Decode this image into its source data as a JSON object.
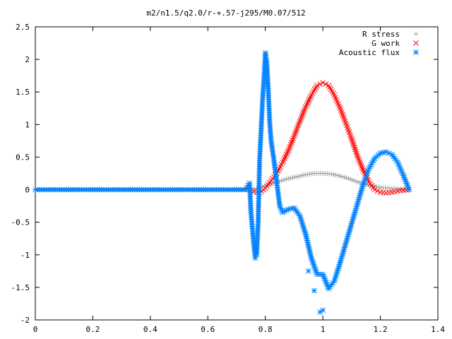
{
  "chart_data": {
    "type": "scatter",
    "title": "m2/n1.5/q2.0/r-+.57-j295/M0.07/512",
    "xlabel": "",
    "ylabel": "",
    "xlim": [
      0,
      1.4
    ],
    "ylim": [
      -2,
      2.5
    ],
    "x_ticks": [
      "0",
      "0.2",
      "0.4",
      "0.6",
      "0.8",
      "1",
      "1.2",
      "1.4"
    ],
    "y_ticks": [
      "2.5",
      "2",
      "1.5",
      "1",
      "0.5",
      "0",
      "-0.5",
      "-1",
      "-1.5",
      "-2"
    ],
    "grid": false,
    "legend_position": "top-right",
    "series": [
      {
        "name": "R stress",
        "marker": "+",
        "color": "#a0a0a0",
        "points": [
          [
            0.0,
            0
          ],
          [
            0.1,
            0
          ],
          [
            0.2,
            0
          ],
          [
            0.3,
            0
          ],
          [
            0.4,
            0
          ],
          [
            0.5,
            0
          ],
          [
            0.6,
            0
          ],
          [
            0.7,
            0
          ],
          [
            0.74,
            0
          ],
          [
            0.76,
            0.01
          ],
          [
            0.78,
            0.03
          ],
          [
            0.8,
            0.06
          ],
          [
            0.82,
            0.09
          ],
          [
            0.85,
            0.13
          ],
          [
            0.88,
            0.17
          ],
          [
            0.91,
            0.2
          ],
          [
            0.94,
            0.23
          ],
          [
            0.97,
            0.25
          ],
          [
            1.0,
            0.25
          ],
          [
            1.03,
            0.24
          ],
          [
            1.06,
            0.21
          ],
          [
            1.09,
            0.17
          ],
          [
            1.12,
            0.12
          ],
          [
            1.15,
            0.08
          ],
          [
            1.18,
            0.05
          ],
          [
            1.21,
            0.03
          ],
          [
            1.24,
            0.02
          ],
          [
            1.27,
            0.01
          ],
          [
            1.3,
            0.0
          ]
        ]
      },
      {
        "name": "G work",
        "marker": "x",
        "color": "#ff0000",
        "points": [
          [
            0.74,
            0.0
          ],
          [
            0.76,
            -0.03
          ],
          [
            0.78,
            -0.05
          ],
          [
            0.8,
            0.02
          ],
          [
            0.82,
            0.14
          ],
          [
            0.84,
            0.25
          ],
          [
            0.86,
            0.42
          ],
          [
            0.88,
            0.6
          ],
          [
            0.9,
            0.82
          ],
          [
            0.92,
            1.05
          ],
          [
            0.94,
            1.27
          ],
          [
            0.96,
            1.45
          ],
          [
            0.98,
            1.6
          ],
          [
            1.0,
            1.64
          ],
          [
            1.02,
            1.6
          ],
          [
            1.04,
            1.45
          ],
          [
            1.06,
            1.25
          ],
          [
            1.08,
            1.02
          ],
          [
            1.1,
            0.78
          ],
          [
            1.12,
            0.52
          ],
          [
            1.14,
            0.3
          ],
          [
            1.16,
            0.12
          ],
          [
            1.18,
            0.0
          ],
          [
            1.2,
            -0.04
          ],
          [
            1.22,
            -0.05
          ],
          [
            1.24,
            -0.04
          ],
          [
            1.26,
            -0.02
          ],
          [
            1.28,
            -0.01
          ],
          [
            1.3,
            0.0
          ]
        ]
      },
      {
        "name": "Acoustic flux",
        "marker": "*",
        "color": "#0080ff",
        "points": [
          [
            0.0,
            0
          ],
          [
            0.1,
            0
          ],
          [
            0.2,
            0
          ],
          [
            0.3,
            0
          ],
          [
            0.4,
            0
          ],
          [
            0.5,
            0
          ],
          [
            0.6,
            0
          ],
          [
            0.7,
            0
          ],
          [
            0.73,
            0
          ],
          [
            0.745,
            0.1
          ],
          [
            0.75,
            -0.35
          ],
          [
            0.755,
            -0.6
          ],
          [
            0.76,
            -0.85
          ],
          [
            0.765,
            -1.05
          ],
          [
            0.77,
            -1.0
          ],
          [
            0.775,
            -0.5
          ],
          [
            0.78,
            0.45
          ],
          [
            0.785,
            0.9
          ],
          [
            0.79,
            1.35
          ],
          [
            0.795,
            1.7
          ],
          [
            0.8,
            2.1
          ],
          [
            0.805,
            1.95
          ],
          [
            0.81,
            1.55
          ],
          [
            0.815,
            1.05
          ],
          [
            0.82,
            0.75
          ],
          [
            0.83,
            0.45
          ],
          [
            0.84,
            0.1
          ],
          [
            0.85,
            -0.25
          ],
          [
            0.86,
            -0.35
          ],
          [
            0.88,
            -0.3
          ],
          [
            0.9,
            -0.28
          ],
          [
            0.92,
            -0.4
          ],
          [
            0.94,
            -0.68
          ],
          [
            0.96,
            -1.05
          ],
          [
            0.98,
            -1.3
          ],
          [
            1.0,
            -1.3
          ],
          [
            1.02,
            -1.52
          ],
          [
            1.04,
            -1.4
          ],
          [
            1.06,
            -1.12
          ],
          [
            1.08,
            -0.82
          ],
          [
            1.1,
            -0.52
          ],
          [
            1.12,
            -0.22
          ],
          [
            1.14,
            0.08
          ],
          [
            1.16,
            0.32
          ],
          [
            1.18,
            0.48
          ],
          [
            1.2,
            0.56
          ],
          [
            1.22,
            0.58
          ],
          [
            1.24,
            0.54
          ],
          [
            1.26,
            0.42
          ],
          [
            1.28,
            0.22
          ],
          [
            1.3,
            0.0
          ],
          [
            0.99,
            -1.88
          ],
          [
            1.0,
            -1.85
          ],
          [
            0.97,
            -1.55
          ],
          [
            0.95,
            -1.25
          ]
        ]
      }
    ]
  }
}
